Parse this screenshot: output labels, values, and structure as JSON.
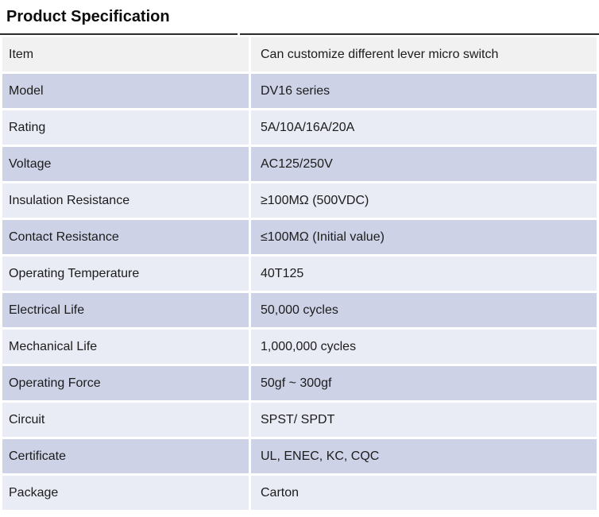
{
  "title": "Product Specification",
  "table": {
    "columns": [
      "label",
      "value"
    ],
    "rows": [
      {
        "label": "Item",
        "value": "Can customize different lever micro switch"
      },
      {
        "label": "Model",
        "value": "DV16 series"
      },
      {
        "label": "Rating",
        "value": "5A/10A/16A/20A"
      },
      {
        "label": "Voltage",
        "value": "AC125/250V"
      },
      {
        "label": "Insulation Resistance",
        "value": "≥100MΩ (500VDC)"
      },
      {
        "label": "Contact Resistance",
        "value": "≤100MΩ (Initial value)"
      },
      {
        "label": "Operating Temperature",
        "value": "40T125"
      },
      {
        "label": "Electrical Life",
        "value": "50,000 cycles"
      },
      {
        "label": "Mechanical Life",
        "value": "1,000,000 cycles"
      },
      {
        "label": "Operating Force",
        "value": "50gf ~ 300gf"
      },
      {
        "label": "Circuit",
        "value": "SPST/ SPDT"
      },
      {
        "label": "Certificate",
        "value": "UL, ENEC, KC, CQC"
      },
      {
        "label": "Package",
        "value": "Carton"
      }
    ]
  },
  "colors": {
    "first_row_bg": "#F1F1F1",
    "row_dark_bg": "#CDD2E7",
    "row_light_bg": "#E9EBF5",
    "top_rule": "#2B2B2B",
    "text": "#1C1C1C"
  }
}
